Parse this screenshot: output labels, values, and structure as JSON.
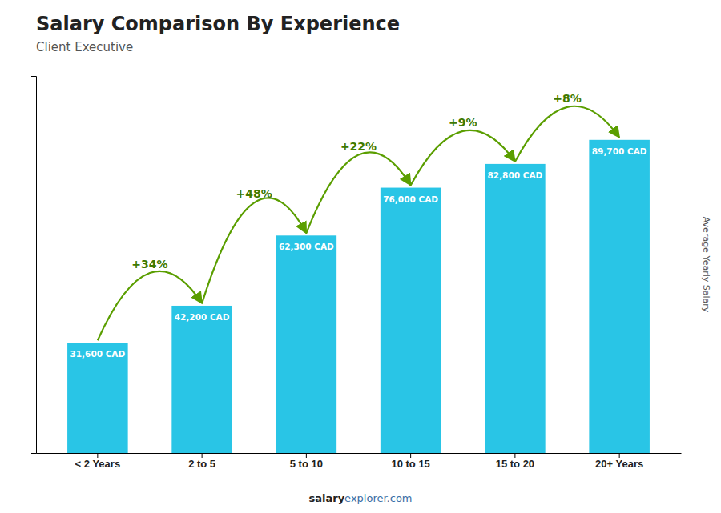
{
  "chart_data": {
    "type": "bar",
    "title": "Salary Comparison By Experience",
    "subtitle": "Client Executive",
    "categories": [
      "< 2 Years",
      "2 to 5",
      "5 to 10",
      "10 to 15",
      "15 to 20",
      "20+ Years"
    ],
    "values": [
      31600,
      42200,
      62300,
      76000,
      82800,
      89700
    ],
    "value_labels": [
      "31,600 CAD",
      "42,200 CAD",
      "62,300 CAD",
      "76,000 CAD",
      "82,800 CAD",
      "89,700 CAD"
    ],
    "data_labels": true,
    "annotations": [
      "+34%",
      "+48%",
      "+22%",
      "+9%",
      "+8%"
    ],
    "ylabel": "Average Yearly Salary",
    "footer": [
      "salary",
      "explorer.com"
    ],
    "color": "#29c5e6",
    "ylim": [
      0,
      108000
    ],
    "yticks": [],
    "tick_labels": "x",
    "grid": false
  }
}
